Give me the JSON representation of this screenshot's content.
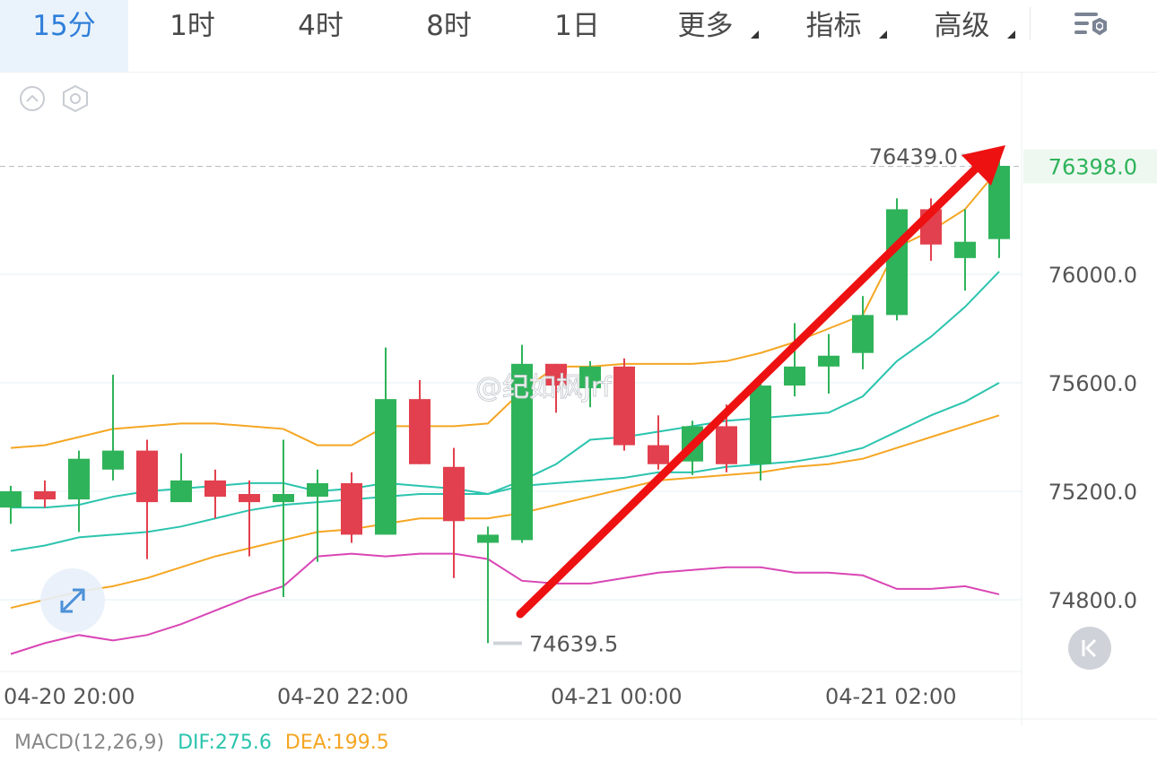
{
  "tabs": [
    {
      "label": "15分",
      "active": true
    },
    {
      "label": "1时",
      "active": false
    },
    {
      "label": "4时",
      "active": false
    },
    {
      "label": "8时",
      "active": false
    },
    {
      "label": "1日",
      "active": false
    },
    {
      "label": "更多",
      "active": false,
      "dropdown": true
    },
    {
      "label": "指标",
      "active": false,
      "dropdown": true
    },
    {
      "label": "高级",
      "active": false,
      "dropdown": true
    }
  ],
  "icons": {
    "settings": "chart-settings-icon",
    "collapse": "chevron-up-circle-icon",
    "hex": "hexagon-settings-icon",
    "expand": "expand-arrows-icon",
    "back": "jump-to-latest-icon"
  },
  "watermark": "@纪如枫Jrf",
  "colors": {
    "up": "#2fb35a",
    "down": "#e2404e",
    "accent": "#2f7fd9",
    "ma_short": "#f5a623",
    "ma_teal": "#2bc4ae",
    "boll_upper": "#f5a623",
    "boll_lower": "#d946b5",
    "arrow": "#ee1111"
  },
  "chart_data": {
    "type": "candlestick",
    "ylim": [
      74560,
      76600
    ],
    "y_ticks": [
      "76000.0",
      "75600.0",
      "75200.0",
      "74800.0"
    ],
    "current_price": "76398.0",
    "high_label": "76439.0",
    "low_label": "74639.5",
    "x_labels": [
      "04-20 20:00",
      "04-20 22:00",
      "04-21 00:00",
      "04-21 02:00"
    ],
    "candles": [
      {
        "o": 75140,
        "c": 75200,
        "h": 75220,
        "l": 75080
      },
      {
        "o": 75200,
        "c": 75170,
        "h": 75240,
        "l": 75140
      },
      {
        "o": 75170,
        "c": 75320,
        "h": 75350,
        "l": 75050
      },
      {
        "o": 75280,
        "c": 75350,
        "h": 75630,
        "l": 75240
      },
      {
        "o": 75350,
        "c": 75160,
        "h": 75390,
        "l": 74950
      },
      {
        "o": 75160,
        "c": 75240,
        "h": 75340,
        "l": 75160
      },
      {
        "o": 75240,
        "c": 75180,
        "h": 75280,
        "l": 75100
      },
      {
        "o": 75190,
        "c": 75160,
        "h": 75240,
        "l": 74960
      },
      {
        "o": 75160,
        "c": 75190,
        "h": 75390,
        "l": 74810
      },
      {
        "o": 75180,
        "c": 75230,
        "h": 75280,
        "l": 74940
      },
      {
        "o": 75230,
        "c": 75040,
        "h": 75270,
        "l": 75010
      },
      {
        "o": 75040,
        "c": 75540,
        "h": 75730,
        "l": 75040
      },
      {
        "o": 75540,
        "c": 75300,
        "h": 75610,
        "l": 75300
      },
      {
        "o": 75290,
        "c": 75090,
        "h": 75360,
        "l": 74880
      },
      {
        "o": 75010,
        "c": 75040,
        "h": 75070,
        "l": 74640
      },
      {
        "o": 75020,
        "c": 75670,
        "h": 75740,
        "l": 75010
      },
      {
        "o": 75670,
        "c": 75590,
        "h": 75670,
        "l": 75490
      },
      {
        "o": 75580,
        "c": 75660,
        "h": 75680,
        "l": 75510
      },
      {
        "o": 75660,
        "c": 75370,
        "h": 75690,
        "l": 75350
      },
      {
        "o": 75370,
        "c": 75300,
        "h": 75480,
        "l": 75280
      },
      {
        "o": 75310,
        "c": 75440,
        "h": 75460,
        "l": 75260
      },
      {
        "o": 75440,
        "c": 75300,
        "h": 75520,
        "l": 75270
      },
      {
        "o": 75300,
        "c": 75590,
        "h": 75620,
        "l": 75240
      },
      {
        "o": 75590,
        "c": 75660,
        "h": 75820,
        "l": 75550
      },
      {
        "o": 75660,
        "c": 75700,
        "h": 75780,
        "l": 75560
      },
      {
        "o": 75710,
        "c": 75850,
        "h": 75920,
        "l": 75650
      },
      {
        "o": 75850,
        "c": 76240,
        "h": 76280,
        "l": 75830
      },
      {
        "o": 76240,
        "c": 76110,
        "h": 76280,
        "l": 76050
      },
      {
        "o": 76060,
        "c": 76120,
        "h": 76240,
        "l": 75940
      },
      {
        "o": 76130,
        "c": 76400,
        "h": 76439,
        "l": 76060
      }
    ],
    "series": [
      {
        "values": [
          74600,
          74640,
          74670,
          74650,
          74670,
          74710,
          74760,
          74810,
          74850,
          74960,
          74970,
          74960,
          74970,
          74970,
          74950,
          74870,
          74860,
          74860,
          74880,
          74900,
          74910,
          74920,
          74920,
          74900,
          74900,
          74890,
          74840,
          74840,
          74850,
          74820
        ]
      },
      {
        "values": [
          74770,
          74800,
          74830,
          74850,
          74880,
          74920,
          74960,
          74990,
          75020,
          75050,
          75060,
          75080,
          75100,
          75100,
          75100,
          75120,
          75150,
          75180,
          75210,
          75240,
          75250,
          75260,
          75270,
          75290,
          75300,
          75320,
          75360,
          75400,
          75440,
          75480
        ]
      },
      {
        "values": [
          74980,
          75000,
          75030,
          75040,
          75050,
          75070,
          75100,
          75130,
          75150,
          75160,
          75170,
          75180,
          75190,
          75190,
          75190,
          75220,
          75230,
          75240,
          75250,
          75270,
          75270,
          75290,
          75300,
          75310,
          75330,
          75360,
          75420,
          75480,
          75530,
          75600
        ]
      },
      {
        "values": [
          75140,
          75140,
          75150,
          75180,
          75200,
          75210,
          75220,
          75230,
          75230,
          75200,
          75210,
          75230,
          75220,
          75210,
          75190,
          75240,
          75300,
          75390,
          75400,
          75420,
          75440,
          75460,
          75470,
          75480,
          75490,
          75550,
          75680,
          75770,
          75880,
          76010
        ]
      },
      {
        "values": [
          75360,
          75370,
          75400,
          75430,
          75440,
          75450,
          75450,
          75440,
          75430,
          75370,
          75370,
          75440,
          75440,
          75440,
          75450,
          75570,
          75660,
          75660,
          75670,
          75670,
          75670,
          75680,
          75710,
          75750,
          75800,
          75850,
          76100,
          76160,
          76240,
          76390
        ]
      }
    ]
  },
  "macd": {
    "params": "MACD(12,26,9)",
    "dif": "DIF:275.6",
    "dea": "DEA:199.5"
  }
}
